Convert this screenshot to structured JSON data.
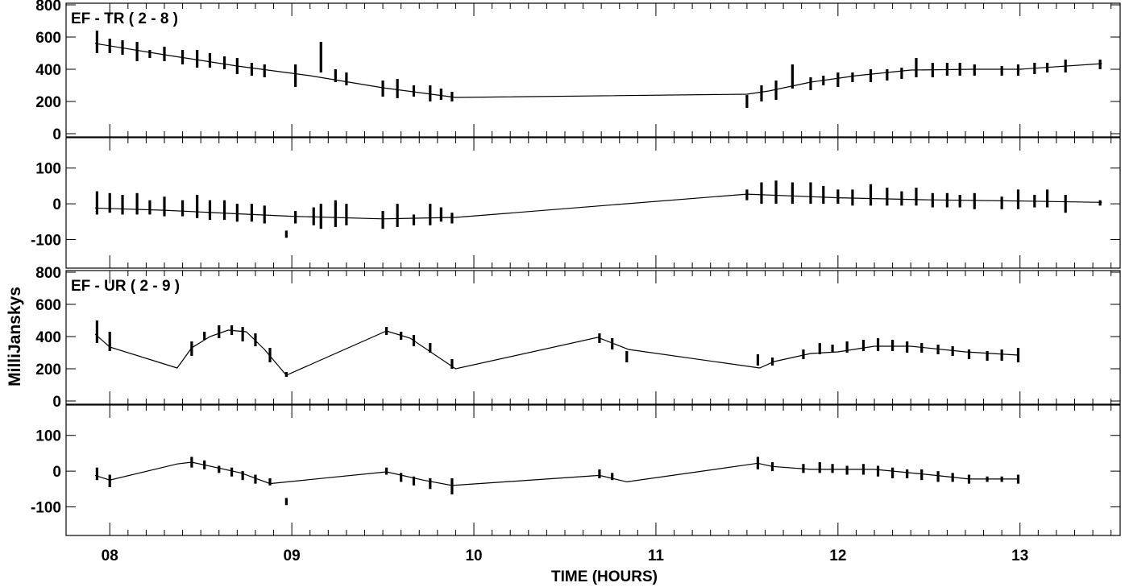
{
  "chart_data": {
    "type": "line",
    "xlabel": "TIME (HOURS)",
    "ylabel": "MilliJanskys",
    "xlim": [
      7.76,
      13.55
    ],
    "xticks": [
      "08",
      "09",
      "10",
      "11",
      "12",
      "13"
    ],
    "panels": [
      {
        "id": "p1",
        "label": "EF - TR ( 2 - 8 )",
        "quantity": "amplitude",
        "ylim": [
          -20,
          810
        ],
        "yticks": [
          "800",
          "600",
          "400",
          "200",
          "0"
        ],
        "model": {
          "x": [
            7.92,
            8.3,
            8.7,
            9.1,
            9.5,
            9.9,
            11.5,
            11.62,
            11.85,
            12.1,
            12.4,
            12.75,
            13.0,
            13.45
          ],
          "y": [
            560,
            490,
            420,
            360,
            285,
            225,
            245,
            265,
            320,
            360,
            395,
            400,
            400,
            435
          ]
        },
        "scans": [
          {
            "x": 7.93,
            "lo": 500,
            "hi": 640
          },
          {
            "x": 8.0,
            "lo": 500,
            "hi": 590
          },
          {
            "x": 8.07,
            "lo": 490,
            "hi": 580
          },
          {
            "x": 8.15,
            "lo": 450,
            "hi": 570
          },
          {
            "x": 8.22,
            "lo": 470,
            "hi": 520
          },
          {
            "x": 8.3,
            "lo": 450,
            "hi": 540
          },
          {
            "x": 8.4,
            "lo": 430,
            "hi": 520
          },
          {
            "x": 8.48,
            "lo": 410,
            "hi": 520
          },
          {
            "x": 8.55,
            "lo": 410,
            "hi": 500
          },
          {
            "x": 8.63,
            "lo": 400,
            "hi": 480
          },
          {
            "x": 8.7,
            "lo": 370,
            "hi": 470
          },
          {
            "x": 8.78,
            "lo": 360,
            "hi": 440
          },
          {
            "x": 8.85,
            "lo": 350,
            "hi": 430
          },
          {
            "x": 9.02,
            "lo": 290,
            "hi": 430
          },
          {
            "x": 9.16,
            "lo": 380,
            "hi": 570
          },
          {
            "x": 9.24,
            "lo": 320,
            "hi": 400
          },
          {
            "x": 9.3,
            "lo": 300,
            "hi": 380
          },
          {
            "x": 9.5,
            "lo": 230,
            "hi": 330
          },
          {
            "x": 9.58,
            "lo": 220,
            "hi": 340
          },
          {
            "x": 9.67,
            "lo": 230,
            "hi": 300
          },
          {
            "x": 9.76,
            "lo": 200,
            "hi": 300
          },
          {
            "x": 9.82,
            "lo": 210,
            "hi": 280
          },
          {
            "x": 9.88,
            "lo": 200,
            "hi": 260
          },
          {
            "x": 11.5,
            "lo": 160,
            "hi": 240
          },
          {
            "x": 11.58,
            "lo": 200,
            "hi": 300
          },
          {
            "x": 11.66,
            "lo": 210,
            "hi": 330
          },
          {
            "x": 11.75,
            "lo": 280,
            "hi": 430
          },
          {
            "x": 11.85,
            "lo": 270,
            "hi": 350
          },
          {
            "x": 11.92,
            "lo": 300,
            "hi": 360
          },
          {
            "x": 12.0,
            "lo": 290,
            "hi": 380
          },
          {
            "x": 12.08,
            "lo": 320,
            "hi": 380
          },
          {
            "x": 12.18,
            "lo": 320,
            "hi": 400
          },
          {
            "x": 12.27,
            "lo": 330,
            "hi": 400
          },
          {
            "x": 12.35,
            "lo": 340,
            "hi": 410
          },
          {
            "x": 12.43,
            "lo": 350,
            "hi": 470
          },
          {
            "x": 12.52,
            "lo": 350,
            "hi": 440
          },
          {
            "x": 12.6,
            "lo": 360,
            "hi": 440
          },
          {
            "x": 12.67,
            "lo": 360,
            "hi": 440
          },
          {
            "x": 12.75,
            "lo": 360,
            "hi": 430
          },
          {
            "x": 12.9,
            "lo": 360,
            "hi": 420
          },
          {
            "x": 12.99,
            "lo": 360,
            "hi": 430
          },
          {
            "x": 13.08,
            "lo": 370,
            "hi": 440
          },
          {
            "x": 13.15,
            "lo": 380,
            "hi": 440
          },
          {
            "x": 13.25,
            "lo": 380,
            "hi": 460
          },
          {
            "x": 13.44,
            "lo": 400,
            "hi": 460
          }
        ]
      },
      {
        "id": "p2",
        "label": "",
        "quantity": "phase",
        "ylim": [
          -180,
          185
        ],
        "yticks": [
          "100",
          "0",
          "-100"
        ],
        "model": {
          "x": [
            7.92,
            8.3,
            8.7,
            9.0,
            9.5,
            9.9,
            11.5,
            12.0,
            12.5,
            13.0,
            13.45
          ],
          "y": [
            -12,
            -18,
            -28,
            -35,
            -42,
            -38,
            27,
            17,
            11,
            8,
            4
          ]
        },
        "scans": [
          {
            "x": 7.93,
            "lo": -30,
            "hi": 35
          },
          {
            "x": 8.0,
            "lo": -25,
            "hi": 30
          },
          {
            "x": 8.07,
            "lo": -30,
            "hi": 25
          },
          {
            "x": 8.15,
            "lo": -30,
            "hi": 30
          },
          {
            "x": 8.22,
            "lo": -30,
            "hi": 10
          },
          {
            "x": 8.3,
            "lo": -35,
            "hi": 20
          },
          {
            "x": 8.4,
            "lo": -35,
            "hi": 10
          },
          {
            "x": 8.48,
            "lo": -40,
            "hi": 25
          },
          {
            "x": 8.55,
            "lo": -45,
            "hi": 10
          },
          {
            "x": 8.63,
            "lo": -45,
            "hi": 10
          },
          {
            "x": 8.7,
            "lo": -50,
            "hi": 0
          },
          {
            "x": 8.78,
            "lo": -50,
            "hi": 0
          },
          {
            "x": 8.85,
            "lo": -55,
            "hi": -5
          },
          {
            "x": 8.97,
            "lo": -95,
            "hi": -75
          },
          {
            "x": 9.02,
            "lo": -55,
            "hi": -20
          },
          {
            "x": 9.12,
            "lo": -60,
            "hi": -10
          },
          {
            "x": 9.16,
            "lo": -70,
            "hi": 0
          },
          {
            "x": 9.24,
            "lo": -65,
            "hi": 10
          },
          {
            "x": 9.3,
            "lo": -60,
            "hi": 0
          },
          {
            "x": 9.5,
            "lo": -70,
            "hi": -20
          },
          {
            "x": 9.58,
            "lo": -65,
            "hi": 0
          },
          {
            "x": 9.67,
            "lo": -60,
            "hi": -30
          },
          {
            "x": 9.76,
            "lo": -60,
            "hi": 0
          },
          {
            "x": 9.82,
            "lo": -50,
            "hi": -10
          },
          {
            "x": 9.88,
            "lo": -55,
            "hi": -25
          },
          {
            "x": 11.5,
            "lo": 10,
            "hi": 40
          },
          {
            "x": 11.58,
            "lo": 0,
            "hi": 60
          },
          {
            "x": 11.66,
            "lo": 0,
            "hi": 65
          },
          {
            "x": 11.75,
            "lo": 0,
            "hi": 60
          },
          {
            "x": 11.85,
            "lo": 0,
            "hi": 60
          },
          {
            "x": 11.92,
            "lo": 0,
            "hi": 50
          },
          {
            "x": 12.0,
            "lo": 0,
            "hi": 40
          },
          {
            "x": 12.08,
            "lo": -5,
            "hi": 40
          },
          {
            "x": 12.18,
            "lo": -5,
            "hi": 55
          },
          {
            "x": 12.27,
            "lo": -5,
            "hi": 45
          },
          {
            "x": 12.35,
            "lo": -5,
            "hi": 35
          },
          {
            "x": 12.43,
            "lo": -5,
            "hi": 45
          },
          {
            "x": 12.52,
            "lo": -10,
            "hi": 30
          },
          {
            "x": 12.6,
            "lo": -10,
            "hi": 30
          },
          {
            "x": 12.67,
            "lo": -10,
            "hi": 25
          },
          {
            "x": 12.75,
            "lo": -15,
            "hi": 30
          },
          {
            "x": 12.9,
            "lo": -15,
            "hi": 20
          },
          {
            "x": 12.99,
            "lo": -15,
            "hi": 40
          },
          {
            "x": 13.08,
            "lo": -10,
            "hi": 25
          },
          {
            "x": 13.15,
            "lo": -10,
            "hi": 40
          },
          {
            "x": 13.25,
            "lo": -25,
            "hi": 25
          },
          {
            "x": 13.44,
            "lo": -5,
            "hi": 10
          }
        ]
      },
      {
        "id": "p3",
        "label": "EF - UR ( 2 - 9 )",
        "quantity": "amplitude",
        "ylim": [
          -20,
          810
        ],
        "yticks": [
          "800",
          "600",
          "400",
          "200",
          "0"
        ],
        "model": {
          "x": [
            7.92,
            8.0,
            8.37,
            8.45,
            8.55,
            8.65,
            8.75,
            8.85,
            8.97,
            9.52,
            9.65,
            9.9,
            10.68,
            10.85,
            11.57,
            11.65,
            11.85,
            12.0,
            12.2,
            12.4,
            12.7,
            12.99
          ],
          "y": [
            415,
            335,
            205,
            330,
            400,
            440,
            430,
            320,
            160,
            435,
            390,
            200,
            395,
            320,
            205,
            245,
            295,
            305,
            340,
            340,
            305,
            285
          ]
        },
        "scans": [
          {
            "x": 7.93,
            "lo": 360,
            "hi": 500
          },
          {
            "x": 8.0,
            "lo": 310,
            "hi": 430
          },
          {
            "x": 8.45,
            "lo": 280,
            "hi": 370
          },
          {
            "x": 8.52,
            "lo": 380,
            "hi": 430
          },
          {
            "x": 8.6,
            "lo": 390,
            "hi": 470
          },
          {
            "x": 8.67,
            "lo": 410,
            "hi": 470
          },
          {
            "x": 8.73,
            "lo": 370,
            "hi": 460
          },
          {
            "x": 8.8,
            "lo": 340,
            "hi": 420
          },
          {
            "x": 8.88,
            "lo": 240,
            "hi": 330
          },
          {
            "x": 8.97,
            "lo": 150,
            "hi": 180
          },
          {
            "x": 9.52,
            "lo": 410,
            "hi": 460
          },
          {
            "x": 9.6,
            "lo": 380,
            "hi": 430
          },
          {
            "x": 9.67,
            "lo": 340,
            "hi": 410
          },
          {
            "x": 9.76,
            "lo": 300,
            "hi": 360
          },
          {
            "x": 9.88,
            "lo": 200,
            "hi": 260
          },
          {
            "x": 10.69,
            "lo": 360,
            "hi": 420
          },
          {
            "x": 10.76,
            "lo": 320,
            "hi": 390
          },
          {
            "x": 10.84,
            "lo": 240,
            "hi": 310
          },
          {
            "x": 11.56,
            "lo": 220,
            "hi": 290
          },
          {
            "x": 11.64,
            "lo": 220,
            "hi": 270
          },
          {
            "x": 11.81,
            "lo": 260,
            "hi": 320
          },
          {
            "x": 11.9,
            "lo": 290,
            "hi": 360
          },
          {
            "x": 11.97,
            "lo": 300,
            "hi": 350
          },
          {
            "x": 12.05,
            "lo": 300,
            "hi": 370
          },
          {
            "x": 12.14,
            "lo": 310,
            "hi": 380
          },
          {
            "x": 12.22,
            "lo": 310,
            "hi": 390
          },
          {
            "x": 12.3,
            "lo": 310,
            "hi": 380
          },
          {
            "x": 12.38,
            "lo": 300,
            "hi": 370
          },
          {
            "x": 12.46,
            "lo": 300,
            "hi": 360
          },
          {
            "x": 12.55,
            "lo": 290,
            "hi": 350
          },
          {
            "x": 12.63,
            "lo": 280,
            "hi": 340
          },
          {
            "x": 12.72,
            "lo": 260,
            "hi": 320
          },
          {
            "x": 12.82,
            "lo": 250,
            "hi": 310
          },
          {
            "x": 12.9,
            "lo": 250,
            "hi": 320
          },
          {
            "x": 12.99,
            "lo": 240,
            "hi": 330
          }
        ]
      },
      {
        "id": "p4",
        "label": "",
        "quantity": "phase",
        "ylim": [
          -180,
          185
        ],
        "yticks": [
          "100",
          "0",
          "-100"
        ],
        "model": {
          "x": [
            7.92,
            8.0,
            8.37,
            8.45,
            8.72,
            8.88,
            9.52,
            9.72,
            9.88,
            10.69,
            10.84,
            11.56,
            11.64,
            11.85,
            12.2,
            12.5,
            12.72,
            12.99
          ],
          "y": [
            -12,
            -25,
            20,
            25,
            -5,
            -35,
            -2,
            -25,
            -40,
            -12,
            -30,
            22,
            13,
            5,
            5,
            -10,
            -22,
            -22
          ]
        },
        "scans": [
          {
            "x": 7.93,
            "lo": -25,
            "hi": 10
          },
          {
            "x": 8.0,
            "lo": -45,
            "hi": -10
          },
          {
            "x": 8.45,
            "lo": 10,
            "hi": 40
          },
          {
            "x": 8.52,
            "lo": 5,
            "hi": 30
          },
          {
            "x": 8.6,
            "lo": -5,
            "hi": 15
          },
          {
            "x": 8.67,
            "lo": -15,
            "hi": 10
          },
          {
            "x": 8.73,
            "lo": -25,
            "hi": 0
          },
          {
            "x": 8.8,
            "lo": -35,
            "hi": -10
          },
          {
            "x": 8.88,
            "lo": -40,
            "hi": -20
          },
          {
            "x": 8.97,
            "lo": -95,
            "hi": -75
          },
          {
            "x": 9.52,
            "lo": -10,
            "hi": 10
          },
          {
            "x": 9.6,
            "lo": -30,
            "hi": -5
          },
          {
            "x": 9.67,
            "lo": -40,
            "hi": -15
          },
          {
            "x": 9.76,
            "lo": -50,
            "hi": -20
          },
          {
            "x": 9.88,
            "lo": -65,
            "hi": -20
          },
          {
            "x": 10.69,
            "lo": -20,
            "hi": 5
          },
          {
            "x": 10.76,
            "lo": -25,
            "hi": -5
          },
          {
            "x": 11.56,
            "lo": 5,
            "hi": 40
          },
          {
            "x": 11.64,
            "lo": 0,
            "hi": 25
          },
          {
            "x": 11.81,
            "lo": -5,
            "hi": 20
          },
          {
            "x": 11.9,
            "lo": -5,
            "hi": 25
          },
          {
            "x": 11.97,
            "lo": -5,
            "hi": 20
          },
          {
            "x": 12.05,
            "lo": -10,
            "hi": 15
          },
          {
            "x": 12.14,
            "lo": -10,
            "hi": 20
          },
          {
            "x": 12.22,
            "lo": -15,
            "hi": 15
          },
          {
            "x": 12.3,
            "lo": -20,
            "hi": 10
          },
          {
            "x": 12.38,
            "lo": -20,
            "hi": 5
          },
          {
            "x": 12.46,
            "lo": -25,
            "hi": 5
          },
          {
            "x": 12.55,
            "lo": -30,
            "hi": 0
          },
          {
            "x": 12.63,
            "lo": -30,
            "hi": -5
          },
          {
            "x": 12.72,
            "lo": -35,
            "hi": -10
          },
          {
            "x": 12.82,
            "lo": -30,
            "hi": -15
          },
          {
            "x": 12.9,
            "lo": -30,
            "hi": -15
          },
          {
            "x": 12.99,
            "lo": -35,
            "hi": -10
          }
        ]
      }
    ]
  }
}
